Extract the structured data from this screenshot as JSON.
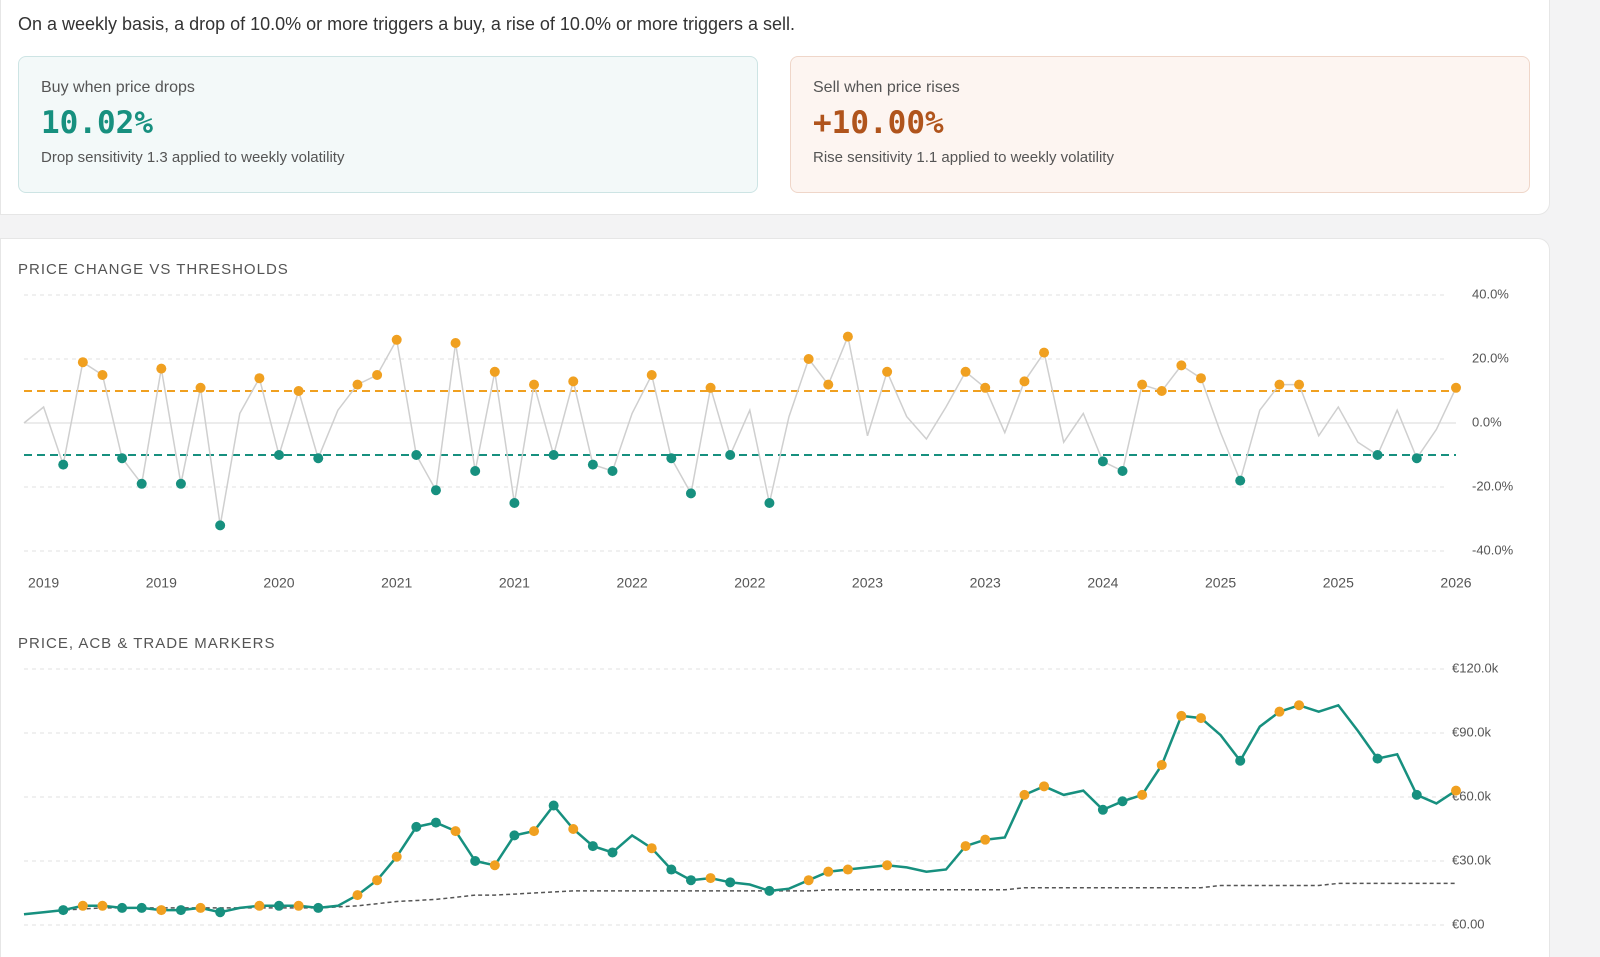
{
  "header": {
    "description": "On a weekly basis, a drop of 10.0% or more triggers a buy, a rise of 10.0% or more triggers a sell."
  },
  "cards": [
    {
      "label": "Buy when price drops",
      "value": "10.02%",
      "note": "Drop sensitivity 1.3 applied to weekly volatility"
    },
    {
      "label": "Sell when price rises",
      "value": "+10.00%",
      "note": "Rise sensitivity 1.1 applied to weekly volatility"
    }
  ],
  "chart_data": [
    {
      "type": "line",
      "title": "PRICE CHANGE VS THRESHOLDS",
      "categories": [
        null,
        "2019",
        null,
        null,
        null,
        null,
        null,
        "2019",
        null,
        null,
        null,
        null,
        null,
        "2020",
        null,
        null,
        null,
        null,
        null,
        "2021",
        null,
        null,
        null,
        null,
        null,
        "2021",
        null,
        null,
        null,
        null,
        null,
        "2022",
        null,
        null,
        null,
        null,
        null,
        "2022",
        null,
        null,
        null,
        null,
        null,
        "2023",
        null,
        null,
        null,
        null,
        null,
        "2023",
        null,
        null,
        null,
        null,
        null,
        "2024",
        null,
        null,
        null,
        null,
        null,
        "2025",
        null,
        null,
        null,
        null,
        null,
        "2025",
        null,
        null,
        null,
        null,
        null,
        "2026"
      ],
      "values": [
        0,
        5,
        -13,
        19,
        15,
        -11,
        -19,
        17,
        -19,
        11,
        -32,
        3,
        14,
        -10,
        10,
        -11,
        4,
        12,
        15,
        26,
        -10,
        -21,
        25,
        -15,
        16,
        -25,
        12,
        -10,
        13,
        -13,
        -15,
        3,
        15,
        -11,
        -22,
        11,
        -10,
        4,
        -25,
        2,
        20,
        12,
        27,
        -4,
        16,
        2,
        -5,
        5,
        16,
        11,
        -3,
        13,
        22,
        -6,
        3,
        -12,
        -15,
        12,
        10,
        18,
        14,
        -3,
        -18,
        4,
        12,
        12,
        -4,
        5,
        -6,
        -10,
        4,
        -11,
        -2,
        11
      ],
      "color": "#cfcfcf",
      "sell_threshold": 10,
      "buy_threshold": -10,
      "sell_color": "#f0a020",
      "buy_color": "#17907f",
      "ylim": [
        -40,
        40
      ],
      "yticks": [
        {
          "value": 40,
          "label": "40.0%"
        },
        {
          "value": 20,
          "label": "20.0%"
        },
        {
          "value": 0,
          "label": "0.0%"
        },
        {
          "value": -20,
          "label": "-20.0%"
        },
        {
          "value": -40,
          "label": "-40.0%"
        }
      ],
      "grid": true
    },
    {
      "type": "line",
      "title": "PRICE, ACB & TRADE MARKERS",
      "series": [
        {
          "color": "#17907f",
          "dash": false,
          "values": [
            5000,
            6000,
            7000,
            9000,
            9000,
            8000,
            8000,
            7000,
            7000,
            8000,
            6000,
            8000,
            9000,
            9000,
            9000,
            8000,
            9000,
            14000,
            21000,
            32000,
            46000,
            48000,
            44000,
            30000,
            28000,
            42000,
            44000,
            56000,
            45000,
            37000,
            34000,
            42000,
            36000,
            26000,
            21000,
            22000,
            20000,
            19000,
            16000,
            17000,
            21000,
            25000,
            26000,
            27000,
            28000,
            27000,
            25000,
            26000,
            37000,
            40000,
            41000,
            61000,
            65000,
            61000,
            63000,
            54000,
            58000,
            61000,
            75000,
            98000,
            97000,
            89000,
            77000,
            93000,
            100000,
            103000,
            100000,
            103000,
            91000,
            78000,
            80000,
            61000,
            57000,
            63000
          ]
        },
        {
          "color": "#555555",
          "dash": true,
          "values": [
            5000,
            6000,
            7000,
            7500,
            8000,
            8000,
            8000,
            8000,
            8000,
            8000,
            8000,
            8000,
            8000,
            8000,
            8000,
            8000,
            8500,
            9000,
            10000,
            11000,
            11500,
            12000,
            13000,
            14000,
            14000,
            14500,
            15000,
            15500,
            16000,
            16000,
            16000,
            16000,
            16000,
            16000,
            16000,
            16000,
            16000,
            16000,
            16000,
            16000,
            16000,
            16500,
            16500,
            16500,
            16500,
            16500,
            16500,
            16500,
            16500,
            16500,
            16500,
            17500,
            17500,
            17500,
            17500,
            17500,
            17500,
            17500,
            17500,
            17500,
            17500,
            18500,
            18500,
            18500,
            18500,
            18500,
            18500,
            19500,
            19500,
            19500,
            19500,
            19500,
            19500,
            19500
          ]
        }
      ],
      "ylim": [
        0,
        120000
      ],
      "yticks": [
        {
          "value": 120000,
          "label": "€120.0k"
        },
        {
          "value": 90000,
          "label": "€90.0k"
        },
        {
          "value": 60000,
          "label": "€60.0k"
        },
        {
          "value": 30000,
          "label": "€30.0k"
        },
        {
          "value": 0,
          "label": "€0.00"
        }
      ],
      "grid": true
    }
  ]
}
